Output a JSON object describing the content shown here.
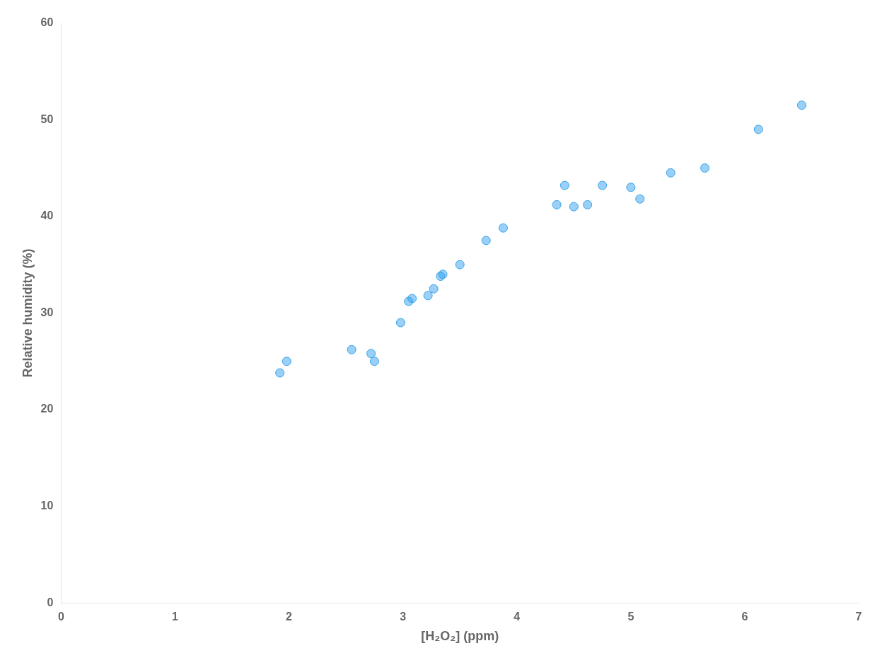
{
  "chart_data": {
    "type": "scatter",
    "x": [
      1.92,
      1.98,
      2.55,
      2.72,
      2.75,
      2.98,
      3.05,
      3.08,
      3.22,
      3.27,
      3.33,
      3.35,
      3.5,
      3.73,
      3.88,
      4.35,
      4.42,
      4.5,
      4.62,
      4.75,
      5.0,
      5.08,
      5.35,
      5.65,
      6.12,
      6.5
    ],
    "values": [
      23.8,
      25.0,
      26.2,
      25.8,
      25.0,
      29.0,
      31.2,
      31.5,
      31.8,
      32.5,
      33.8,
      34.0,
      35.0,
      37.5,
      38.8,
      41.2,
      43.2,
      41.0,
      41.2,
      43.2,
      43.0,
      41.8,
      44.5,
      45.0,
      49.0,
      51.5
    ],
    "xlabel": "[H₂O₂] (ppm)",
    "ylabel": "Relative humidity (%)",
    "xlim": [
      0,
      7
    ],
    "ylim": [
      0,
      60
    ],
    "xticks": [
      0,
      1,
      2,
      3,
      4,
      5,
      6,
      7
    ],
    "yticks": [
      0,
      10,
      20,
      30,
      40,
      50,
      60
    ],
    "grid": false
  }
}
